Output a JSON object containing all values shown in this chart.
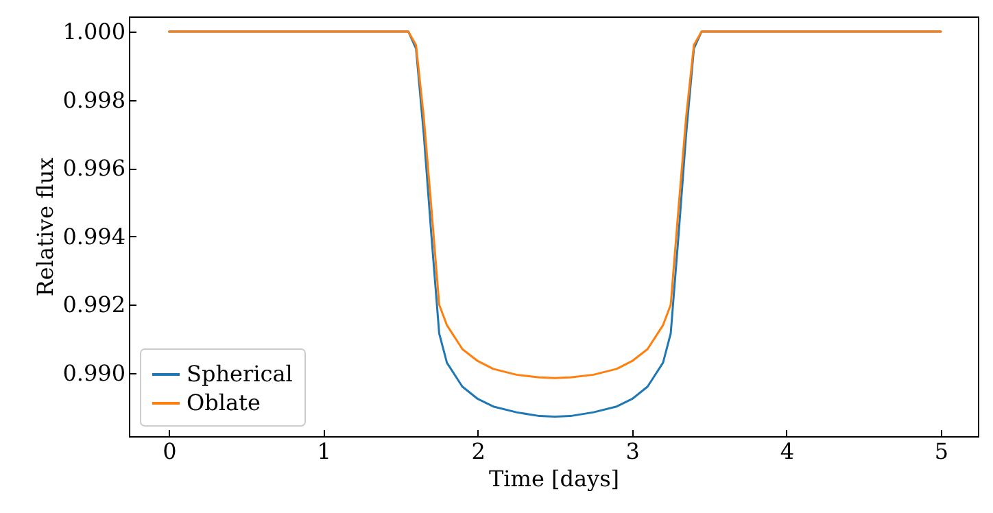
{
  "chart_data": {
    "type": "line",
    "xlabel": "Time [days]",
    "ylabel": "Relative flux",
    "xlim": [
      -0.26,
      5.24
    ],
    "xticks": [
      0,
      1,
      2,
      3,
      4,
      5
    ],
    "ylim": [
      0.98815,
      1.00044
    ],
    "yticks": [
      {
        "value": 0.99,
        "label": "0.990"
      },
      0.992,
      0.994,
      0.996,
      0.998,
      {
        "value": 1.0,
        "label": "1.000"
      }
    ],
    "grid": false,
    "legend": "bottom left",
    "line_style": "solid",
    "marker": "none",
    "series": [
      {
        "name": "Spherical",
        "color": "#1f77b4",
        "x": [
          0,
          1.55,
          1.6,
          1.65,
          1.7,
          1.75,
          1.8,
          1.9,
          2.0,
          2.1,
          2.25,
          2.4,
          2.5,
          2.6,
          2.75,
          2.9,
          3.0,
          3.1,
          3.2,
          3.25,
          3.3,
          3.35,
          3.4,
          3.45,
          5
        ],
        "values": [
          1.0,
          1.0,
          0.9995,
          0.997,
          0.994,
          0.99116,
          0.9903,
          0.9896,
          0.98924,
          0.98902,
          0.98885,
          0.98874,
          0.98872,
          0.98874,
          0.98885,
          0.98902,
          0.98924,
          0.9896,
          0.9903,
          0.99116,
          0.994,
          0.997,
          0.9995,
          1.0,
          1.0
        ]
      },
      {
        "name": "Oblate",
        "color": "#ff7f0e",
        "x": [
          0,
          1.55,
          1.6,
          1.65,
          1.7,
          1.75,
          1.8,
          1.9,
          2.0,
          2.1,
          2.25,
          2.4,
          2.5,
          2.6,
          2.75,
          2.9,
          3.0,
          3.1,
          3.2,
          3.25,
          3.3,
          3.35,
          3.4,
          3.45,
          5
        ],
        "values": [
          1.0,
          1.0,
          0.9996,
          0.9975,
          0.9948,
          0.992,
          0.9914,
          0.9907,
          0.99035,
          0.99012,
          0.98995,
          0.98987,
          0.98985,
          0.98987,
          0.98995,
          0.99012,
          0.99035,
          0.9907,
          0.9914,
          0.992,
          0.9948,
          0.9975,
          0.9996,
          1.0,
          1.0
        ]
      }
    ]
  }
}
